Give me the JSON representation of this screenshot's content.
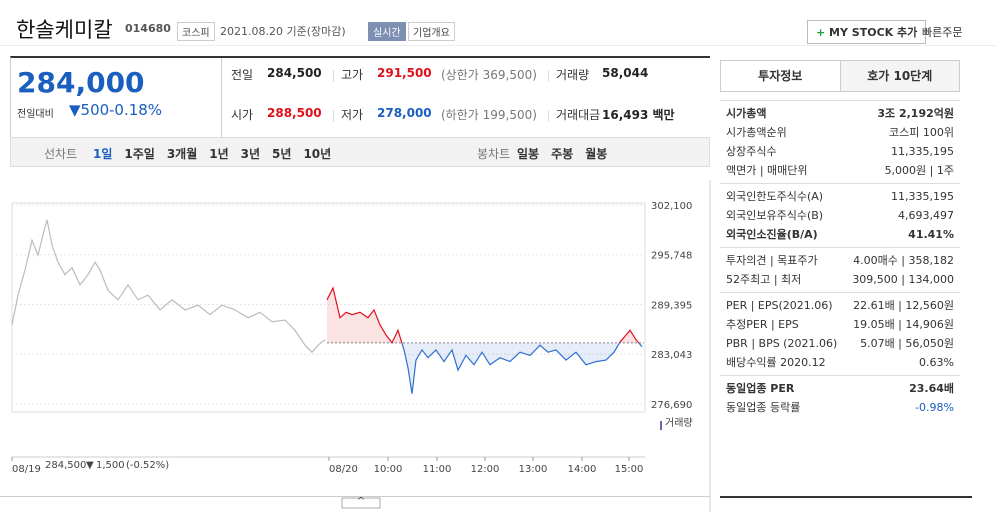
{
  "header": {
    "name": "한솔케미칼",
    "code": "014680",
    "market": "코스피",
    "date": "2021.08.20 기준(장마감)",
    "realtime": "실시간",
    "overview": "기업개요",
    "mystock": "MY STOCK 추가",
    "quick": "빠른주문"
  },
  "price": {
    "current": "284,000",
    "change_label": "전일대비",
    "change": "500",
    "rate": "-0.18%"
  },
  "stats": [
    [
      {
        "label": "전일",
        "value": "284,500"
      },
      {
        "label": "고가",
        "value": "291,500",
        "note": "(상한가 369,500)"
      },
      {
        "label": "거래량",
        "value": "58,044"
      }
    ],
    [
      {
        "label": "시가",
        "value": "288,500"
      },
      {
        "label": "저가",
        "value": "278,000",
        "note": "(하한가 199,500)"
      },
      {
        "label": "거래대금",
        "value": "16,493 백만"
      }
    ]
  ],
  "tabs": {
    "line_label": "선차트",
    "periods": [
      "1일",
      "1주일",
      "3개월",
      "1년",
      "3년",
      "5년",
      "10년"
    ],
    "candle_label": "봉차트",
    "candles": [
      "일봉",
      "주봉",
      "월봉"
    ]
  },
  "chart_data": {
    "type": "line",
    "ylim": [
      276690,
      302100
    ],
    "yticks": [
      {
        "value": 302100,
        "label": "302,100"
      },
      {
        "value": 295748,
        "label": "295,748"
      },
      {
        "value": 289395,
        "label": "289,395"
      },
      {
        "value": 283043,
        "label": "283,043"
      },
      {
        "value": 276690,
        "label": "276,690"
      }
    ],
    "xlim": [
      0,
      632
    ],
    "xticks": [
      {
        "value": 0,
        "label": "08/19"
      },
      {
        "value": 317,
        "label": "08/20"
      },
      {
        "value": 376,
        "label": "10:00"
      },
      {
        "value": 425,
        "label": "11:00"
      },
      {
        "value": 473,
        "label": "12:00"
      },
      {
        "value": 521,
        "label": "13:00"
      },
      {
        "value": 570,
        "label": "14:00"
      },
      {
        "value": 617,
        "label": "15:00"
      }
    ],
    "baseline": 284500,
    "grid": true,
    "series": [
      {
        "color": "#bbbbbb",
        "x": [
          0,
          6,
          13,
          20,
          26,
          31,
          35,
          40,
          46,
          53,
          60,
          68,
          76,
          83,
          88,
          96,
          106,
          116,
          126,
          136,
          148,
          160,
          173,
          186,
          198,
          210,
          223,
          236,
          248,
          260,
          273,
          283,
          293,
          300,
          306,
          313
        ],
        "values": [
          286800,
          290600,
          293800,
          297600,
          295700,
          298300,
          300200,
          297000,
          294800,
          293200,
          294100,
          291900,
          293200,
          294800,
          293800,
          291200,
          290000,
          291900,
          290000,
          290600,
          288700,
          290000,
          288700,
          289300,
          288100,
          289300,
          288700,
          287700,
          288400,
          287200,
          287400,
          286100,
          284200,
          283300,
          284200,
          284900
        ]
      },
      {
        "color": "#2f6fcf",
        "up_color": "#e0101a",
        "x": [
          315,
          321,
          328,
          334,
          340,
          348,
          356,
          362,
          368,
          374,
          380,
          386,
          392,
          396,
          400,
          404,
          410,
          416,
          424,
          432,
          440,
          446,
          454,
          462,
          470,
          478,
          488,
          498,
          508,
          518,
          528,
          536,
          544,
          554,
          564,
          574,
          584,
          594,
          602,
          608,
          614,
          618,
          624,
          630
        ],
        "values": [
          290000,
          291500,
          287700,
          288400,
          288100,
          288400,
          287700,
          288700,
          286800,
          285500,
          284500,
          286100,
          283600,
          281300,
          278000,
          282300,
          283600,
          282600,
          283600,
          282100,
          283600,
          281000,
          282900,
          281700,
          283300,
          281700,
          282600,
          282100,
          283300,
          282900,
          284200,
          283300,
          283600,
          282300,
          283300,
          281700,
          282100,
          282300,
          283300,
          284600,
          285500,
          286100,
          284900,
          284000
        ]
      }
    ],
    "volume_label": "거래량",
    "prev_day": {
      "close": "284,500",
      "change": "1,500",
      "rate": "(-0.52%)"
    }
  },
  "panel": {
    "tabs": [
      "투자정보",
      "호가 10단계"
    ],
    "sections": [
      [
        {
          "label": "시가총액",
          "value": "3조 2,192억원",
          "strong": true
        },
        {
          "label": "시가총액순위",
          "value": "코스피 100위"
        },
        {
          "label": "상장주식수",
          "value": "11,335,195"
        },
        {
          "label": "액면가 | 매매단위",
          "value": "5,000원 | 1주"
        }
      ],
      [
        {
          "label": "외국인한도주식수(A)",
          "value": "11,335,195"
        },
        {
          "label": "외국인보유주식수(B)",
          "value": "4,693,497"
        },
        {
          "label": "외국인소진율(B/A)",
          "value": "41.41%",
          "strong": true
        }
      ],
      [
        {
          "label": "투자의견 | 목표주가",
          "value": "4.00매수 | 358,182"
        },
        {
          "label": "52주최고 | 최저",
          "value": "309,500 | 134,000"
        }
      ],
      [
        {
          "label": "PER | EPS(2021.06)",
          "value": "22.61배 | 12,560원"
        },
        {
          "label": "추정PER | EPS",
          "value": "19.05배 | 14,906원"
        },
        {
          "label": "PBR | BPS (2021.06)",
          "value": "5.07배 | 56,050원"
        },
        {
          "label": "배당수익률 2020.12",
          "value": "0.63%"
        }
      ],
      [
        {
          "label": "동일업종 PER",
          "value": "23.64배",
          "strong": true
        },
        {
          "label": "동일업종 등락률",
          "value": "-0.98%",
          "down": true
        }
      ]
    ]
  }
}
